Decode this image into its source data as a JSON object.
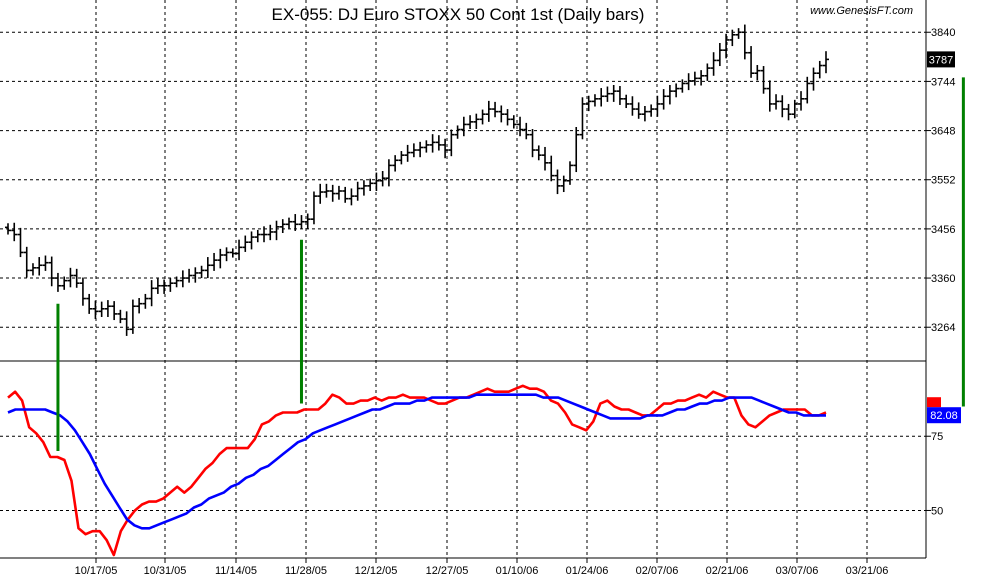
{
  "chart_data": {
    "type": "line",
    "title": "EX-055:  DJ Euro STOXX 50 Cont 1st  (Daily bars)",
    "watermark": "www.GenesisFT.com",
    "x_tick_labels": [
      "10/17/05",
      "10/31/05",
      "11/14/05",
      "11/28/05",
      "12/12/05",
      "12/27/05",
      "01/10/06",
      "01/24/06",
      "02/07/06",
      "02/21/06",
      "03/07/06",
      "03/21/06"
    ],
    "price_panel": {
      "type": "ohlc",
      "ylim": [
        3200,
        3860
      ],
      "y_ticks": [
        3264,
        3360,
        3456,
        3552,
        3648,
        3744,
        3840
      ],
      "last_value_label": "3787",
      "last_value": 3787,
      "closes": [
        3453,
        3445,
        3410,
        3375,
        3380,
        3385,
        3390,
        3360,
        3345,
        3355,
        3365,
        3350,
        3320,
        3300,
        3295,
        3300,
        3305,
        3290,
        3280,
        3260,
        3305,
        3310,
        3320,
        3340,
        3345,
        3345,
        3350,
        3355,
        3360,
        3365,
        3370,
        3375,
        3385,
        3395,
        3405,
        3410,
        3408,
        3420,
        3430,
        3440,
        3445,
        3445,
        3450,
        3460,
        3465,
        3470,
        3465,
        3470,
        3475,
        3520,
        3528,
        3530,
        3525,
        3530,
        3515,
        3520,
        3535,
        3540,
        3545,
        3550,
        3555,
        3580,
        3590,
        3600,
        3605,
        3610,
        3615,
        3620,
        3625,
        3620,
        3610,
        3640,
        3650,
        3660,
        3665,
        3670,
        3680,
        3690,
        3685,
        3680,
        3670,
        3660,
        3650,
        3640,
        3610,
        3600,
        3585,
        3560,
        3540,
        3550,
        3580,
        3640,
        3700,
        3705,
        3710,
        3715,
        3720,
        3725,
        3710,
        3700,
        3690,
        3680,
        3685,
        3690,
        3700,
        3715,
        3725,
        3730,
        3740,
        3745,
        3750,
        3755,
        3770,
        3785,
        3805,
        3825,
        3835,
        3840,
        3800,
        3760,
        3765,
        3730,
        3700,
        3705,
        3690,
        3680,
        3700,
        3710,
        3740,
        3760,
        3775,
        3787
      ]
    },
    "indicator_panel": {
      "ylim": [
        35,
        100
      ],
      "y_ticks": [
        50,
        75
      ],
      "last_value_label": "82.08",
      "last_value": 82.08,
      "series": [
        {
          "color": "#ff0000",
          "values": [
            88,
            90,
            87,
            78,
            76,
            73,
            68,
            68,
            67,
            60,
            44,
            42,
            43,
            43,
            40,
            35,
            43,
            47,
            50,
            52,
            53,
            53,
            54,
            56,
            58,
            56,
            58,
            61,
            64,
            66,
            69,
            71,
            71,
            71,
            71,
            74,
            79,
            80,
            82,
            83,
            83,
            83,
            84,
            84,
            84,
            86,
            89,
            88,
            86,
            86,
            87,
            87,
            88,
            87,
            88,
            88,
            89,
            88,
            88,
            88,
            87,
            86,
            86,
            87,
            88,
            88,
            89,
            90,
            91,
            90,
            90,
            90,
            91,
            92,
            91,
            91,
            90,
            87,
            86,
            83,
            79,
            78,
            77,
            80,
            86,
            87,
            85,
            84,
            84,
            83,
            82,
            82,
            84,
            86,
            86,
            87,
            87,
            88,
            89,
            88,
            90,
            89,
            88,
            88,
            82,
            79,
            78,
            80,
            82,
            83,
            84,
            84,
            84,
            84,
            82,
            82,
            83
          ]
        },
        {
          "color": "#0000ff",
          "values": [
            83,
            84,
            84,
            84,
            84,
            84,
            83,
            82,
            80,
            77,
            73,
            69,
            64,
            59,
            55,
            51,
            47,
            45,
            44,
            44,
            45,
            46,
            47,
            48,
            49,
            51,
            52,
            54,
            55,
            56,
            58,
            59,
            61,
            62,
            64,
            65,
            67,
            69,
            71,
            73,
            74,
            76,
            77,
            78,
            79,
            80,
            81,
            82,
            83,
            84,
            84,
            85,
            86,
            86,
            86,
            87,
            87,
            88,
            88,
            88,
            88,
            88,
            88,
            89,
            89,
            89,
            89,
            89,
            89,
            89,
            89,
            89,
            88,
            88,
            88,
            87,
            86,
            85,
            84,
            83,
            82,
            81,
            81,
            81,
            81,
            81,
            82,
            82,
            82,
            83,
            84,
            84,
            85,
            86,
            86,
            87,
            87,
            88,
            88,
            88,
            88,
            87,
            86,
            85,
            84,
            83,
            83,
            82,
            82,
            82,
            82
          ]
        }
      ]
    },
    "annotations": [
      {
        "type": "divergence-line",
        "color": "#008000",
        "count": 6
      }
    ]
  }
}
